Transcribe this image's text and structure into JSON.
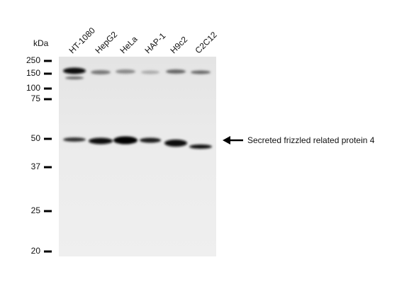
{
  "unit_label": "kDa",
  "lanes": [
    "HT-1080",
    "HepG2",
    "HeLa",
    "HAP-1",
    "H9c2",
    "C2C12"
  ],
  "markers": [
    250,
    150,
    100,
    75,
    50,
    37,
    25,
    20
  ],
  "annotation": "Secreted frizzled related protein 4"
}
